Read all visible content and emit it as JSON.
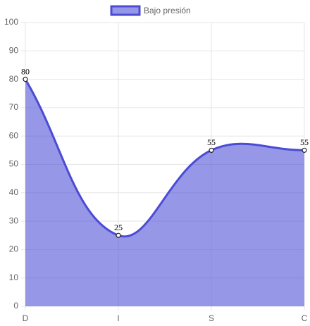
{
  "chart_data": {
    "type": "line",
    "categories": [
      "D",
      "I",
      "S",
      "C"
    ],
    "series": [
      {
        "name": "Bajo presión",
        "color": "#4b4bd6",
        "fill_color": "rgba(75,75,214,0.58)",
        "values": [
          80,
          25,
          55,
          55
        ]
      }
    ],
    "ylim": [
      0,
      100
    ],
    "yticks": [
      0,
      10,
      20,
      30,
      40,
      50,
      60,
      70,
      80,
      90,
      100
    ],
    "grid": true,
    "legend": "top"
  }
}
